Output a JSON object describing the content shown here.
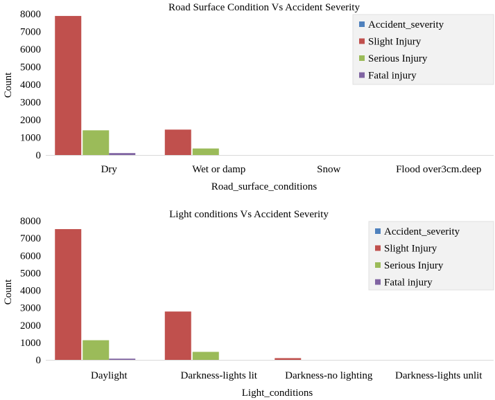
{
  "colors": {
    "accident_severity": "#4F81BD",
    "slight": "#C0504D",
    "serious": "#9BBB59",
    "fatal": "#8064A2",
    "legend_bg": "#F2F2F2"
  },
  "chart_data": [
    {
      "type": "bar",
      "title": "Road Surface Condition Vs Accident Severity",
      "xlabel": "Road_surface_conditions",
      "ylabel": "Count",
      "ylim": [
        0,
        8000
      ],
      "yticks": [
        "0",
        "1000",
        "2000",
        "3000",
        "4000",
        "5000",
        "6000",
        "7000",
        "8000"
      ],
      "categories": [
        "Dry",
        "Wet or damp",
        "Snow",
        "Flood over3cm.deep"
      ],
      "legend_position": "top-right",
      "series": [
        {
          "name": "Accident_severity",
          "color_key": "accident_severity",
          "values": [
            0,
            0,
            0,
            0
          ]
        },
        {
          "name": "Slight Injury",
          "color_key": "slight",
          "values": [
            7880,
            1440,
            0,
            0
          ]
        },
        {
          "name": "Serious Injury",
          "color_key": "serious",
          "values": [
            1400,
            370,
            0,
            0
          ]
        },
        {
          "name": "Fatal injury",
          "color_key": "fatal",
          "values": [
            110,
            0,
            0,
            0
          ]
        }
      ]
    },
    {
      "type": "bar",
      "title": "Light conditions Vs Accident Severity",
      "xlabel": "Light_conditions",
      "ylabel": "Count",
      "ylim": [
        0,
        8000
      ],
      "yticks": [
        "0",
        "1000",
        "2000",
        "3000",
        "4000",
        "5000",
        "6000",
        "7000",
        "8000"
      ],
      "categories": [
        "Daylight",
        "Darkness-lights lit",
        "Darkness-no lighting",
        "Darkness-lights unlit"
      ],
      "legend_position": "top-right",
      "series": [
        {
          "name": "Accident_severity",
          "color_key": "accident_severity",
          "values": [
            0,
            0,
            0,
            0
          ]
        },
        {
          "name": "Slight Injury",
          "color_key": "slight",
          "values": [
            7520,
            2780,
            100,
            0
          ]
        },
        {
          "name": "Serious Injury",
          "color_key": "serious",
          "values": [
            1130,
            460,
            0,
            0
          ]
        },
        {
          "name": "Fatal injury",
          "color_key": "fatal",
          "values": [
            70,
            0,
            0,
            0
          ]
        }
      ]
    }
  ]
}
